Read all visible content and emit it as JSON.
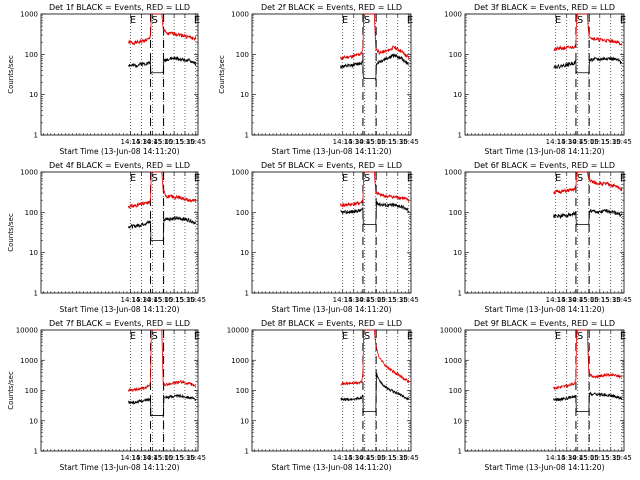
{
  "chart_data": [
    {
      "type": "line",
      "title": "Det 1f BLACK = Events, RED = LLD",
      "ylabel": "Counts/sec",
      "xlabel": "Start Time (13-Jun-08 14:11:20)",
      "yscale": "log",
      "ylim": [
        1,
        1000
      ],
      "y_ticks": [
        "1",
        "10",
        "100",
        "1000"
      ],
      "x_ticks": [
        "14:15",
        "14:30",
        "14:45",
        "15:00",
        "15:15",
        "15:30",
        "15:45"
      ],
      "markers": [
        "E",
        "S",
        "E"
      ],
      "series": [
        {
          "name": "LLD",
          "x": [
            "14:12",
            "14:20",
            "14:30",
            "14:38",
            "14:41",
            "14:42.5",
            "14:43.5",
            "14:44.5",
            "14:45",
            "14:55",
            "14:56",
            "14:58",
            "15:00",
            "15:05",
            "15:15",
            "15:25",
            "15:35",
            "15:45"
          ],
          "values": [
            200,
            190,
            210,
            230,
            240,
            290,
            1000,
            1000,
            1000,
            1000,
            1000,
            1000,
            420,
            320,
            330,
            300,
            270,
            240
          ]
        },
        {
          "name": "Events",
          "x": [
            "14:12",
            "14:20",
            "14:30",
            "14:38",
            "14:41",
            "14:42.5",
            "14:43",
            "14:44",
            "14:45",
            "15:00",
            "15:01",
            "15:05",
            "15:15",
            "15:25",
            "15:35",
            "15:45"
          ],
          "values": [
            55,
            52,
            58,
            60,
            62,
            65,
            35,
            35,
            35,
            35,
            70,
            75,
            80,
            75,
            70,
            60
          ]
        }
      ]
    },
    {
      "type": "line",
      "title": "Det 2f BLACK = Events, RED = LLD",
      "ylabel": "Counts/sec",
      "xlabel": "Start Time (13-Jun-08 14:11:20)",
      "yscale": "log",
      "ylim": [
        1,
        1000
      ],
      "y_ticks": [
        "1",
        "10",
        "100",
        "1000"
      ],
      "x_ticks": [
        "14:15",
        "14:30",
        "14:45",
        "15:00",
        "15:15",
        "15:30",
        "15:45"
      ],
      "markers": [
        "E",
        "S",
        "E"
      ],
      "series": [
        {
          "name": "LLD",
          "x": [
            "14:12",
            "14:20",
            "14:30",
            "14:38",
            "14:41",
            "14:42.5",
            "14:43.5",
            "14:44.5",
            "14:45",
            "14:55",
            "14:56",
            "14:58",
            "15:00",
            "15:05",
            "15:15",
            "15:25",
            "15:35",
            "15:45"
          ],
          "values": [
            80,
            85,
            90,
            100,
            110,
            130,
            1000,
            1000,
            1000,
            1000,
            1000,
            1000,
            140,
            110,
            120,
            150,
            120,
            80
          ]
        },
        {
          "name": "Events",
          "x": [
            "14:12",
            "14:20",
            "14:30",
            "14:38",
            "14:41",
            "14:42.5",
            "14:43",
            "14:44",
            "14:45",
            "15:00",
            "15:01",
            "15:05",
            "15:15",
            "15:25",
            "15:35",
            "15:45"
          ],
          "values": [
            50,
            50,
            55,
            60,
            62,
            65,
            25,
            25,
            25,
            25,
            60,
            65,
            80,
            95,
            80,
            55
          ]
        }
      ]
    },
    {
      "type": "line",
      "title": "Det 3f BLACK = Events, RED = LLD",
      "ylabel": "",
      "xlabel": "Start Time (13-Jun-08 14:11:20)",
      "yscale": "log",
      "ylim": [
        1,
        1000
      ],
      "y_ticks": [
        "1",
        "10",
        "100",
        "1000"
      ],
      "x_ticks": [
        "14:15",
        "14:30",
        "14:45",
        "15:00",
        "15:15",
        "15:30",
        "15:45"
      ],
      "markers": [
        "E",
        "S",
        "E"
      ],
      "series": [
        {
          "name": "LLD",
          "x": [
            "14:12",
            "14:20",
            "14:30",
            "14:38",
            "14:41",
            "14:42.5",
            "14:43.5",
            "14:44.5",
            "14:45",
            "14:55",
            "14:56",
            "14:58",
            "15:00",
            "15:05",
            "15:15",
            "15:25",
            "15:35",
            "15:45"
          ],
          "values": [
            130,
            140,
            145,
            150,
            160,
            180,
            1000,
            1000,
            1000,
            1000,
            1000,
            1000,
            300,
            250,
            230,
            220,
            210,
            180
          ]
        },
        {
          "name": "Events",
          "x": [
            "14:12",
            "14:20",
            "14:30",
            "14:38",
            "14:41",
            "14:42.5",
            "14:43",
            "14:44",
            "14:45",
            "15:00",
            "15:01",
            "15:05",
            "15:15",
            "15:25",
            "15:35",
            "15:45"
          ],
          "values": [
            50,
            50,
            55,
            60,
            62,
            65,
            35,
            35,
            35,
            35,
            70,
            75,
            75,
            80,
            75,
            65
          ]
        }
      ]
    },
    {
      "type": "line",
      "title": "Det 4f BLACK = Events, RED = LLD",
      "ylabel": "Counts/sec",
      "xlabel": "Start Time (13-Jun-08 14:11:20)",
      "yscale": "log",
      "ylim": [
        1,
        1000
      ],
      "y_ticks": [
        "1",
        "10",
        "100",
        "1000"
      ],
      "x_ticks": [
        "14:15",
        "14:30",
        "14:45",
        "15:00",
        "15:15",
        "15:30",
        "15:45"
      ],
      "markers": [
        "E",
        "S",
        "E"
      ],
      "series": [
        {
          "name": "LLD",
          "x": [
            "14:12",
            "14:20",
            "14:30",
            "14:38",
            "14:41",
            "14:42.5",
            "14:43.5",
            "14:44.5",
            "14:45",
            "14:55",
            "14:56",
            "14:58",
            "15:00",
            "15:05",
            "15:15",
            "15:25",
            "15:35",
            "15:45"
          ],
          "values": [
            140,
            145,
            160,
            170,
            180,
            200,
            1000,
            1000,
            1000,
            1000,
            1000,
            1000,
            350,
            250,
            240,
            230,
            200,
            190
          ]
        },
        {
          "name": "Events",
          "x": [
            "14:12",
            "14:20",
            "14:30",
            "14:38",
            "14:41",
            "14:42.5",
            "14:43",
            "14:44",
            "14:45",
            "15:00",
            "15:01",
            "15:05",
            "15:15",
            "15:25",
            "15:35",
            "15:45"
          ],
          "values": [
            45,
            45,
            50,
            55,
            57,
            60,
            20,
            20,
            20,
            20,
            65,
            70,
            70,
            70,
            65,
            55
          ]
        }
      ]
    },
    {
      "type": "line",
      "title": "Det 5f BLACK = Events, RED = LLD",
      "ylabel": "",
      "xlabel": "Start Time (13-Jun-08 14:11:20)",
      "yscale": "log",
      "ylim": [
        1,
        1000
      ],
      "y_ticks": [
        "1",
        "10",
        "100",
        "1000"
      ],
      "x_ticks": [
        "14:15",
        "14:30",
        "14:45",
        "15:00",
        "15:15",
        "15:30",
        "15:45"
      ],
      "markers": [
        "E",
        "S",
        "E"
      ],
      "series": [
        {
          "name": "LLD",
          "x": [
            "14:12",
            "14:20",
            "14:30",
            "14:38",
            "14:41",
            "14:42.5",
            "14:43.5",
            "14:44.5",
            "14:45",
            "14:55",
            "14:56",
            "14:58",
            "15:00",
            "15:05",
            "15:15",
            "15:25",
            "15:35",
            "15:45"
          ],
          "values": [
            150,
            155,
            160,
            170,
            180,
            200,
            1000,
            1000,
            1000,
            1000,
            1000,
            1000,
            320,
            270,
            250,
            240,
            230,
            200
          ]
        },
        {
          "name": "Events",
          "x": [
            "14:12",
            "14:20",
            "14:30",
            "14:38",
            "14:41",
            "14:42.5",
            "14:43",
            "14:44",
            "14:45",
            "15:00",
            "15:01",
            "15:05",
            "15:15",
            "15:25",
            "15:35",
            "15:45"
          ],
          "values": [
            100,
            100,
            105,
            110,
            115,
            120,
            50,
            50,
            50,
            50,
            180,
            160,
            150,
            150,
            140,
            110
          ]
        }
      ]
    },
    {
      "type": "line",
      "title": "Det 6f BLACK = Events, RED = LLD",
      "ylabel": "",
      "xlabel": "Start Time (13-Jun-08 14:11:20)",
      "yscale": "log",
      "ylim": [
        1,
        1000
      ],
      "y_ticks": [
        "1",
        "10",
        "100",
        "1000"
      ],
      "x_ticks": [
        "14:15",
        "14:30",
        "14:45",
        "15:00",
        "15:15",
        "15:30",
        "15:45"
      ],
      "markers": [
        "E",
        "S",
        "E"
      ],
      "series": [
        {
          "name": "LLD",
          "x": [
            "14:12",
            "14:20",
            "14:30",
            "14:38",
            "14:41",
            "14:42.5",
            "14:43.5",
            "14:44.5",
            "14:45",
            "14:55",
            "14:56",
            "14:58",
            "15:00",
            "15:05",
            "15:15",
            "15:25",
            "15:35",
            "15:45"
          ],
          "values": [
            320,
            325,
            340,
            360,
            380,
            420,
            1000,
            1000,
            1000,
            1000,
            1000,
            1000,
            650,
            560,
            520,
            500,
            450,
            380
          ]
        },
        {
          "name": "Events",
          "x": [
            "14:12",
            "14:20",
            "14:30",
            "14:38",
            "14:41",
            "14:42.5",
            "14:43",
            "14:44",
            "14:45",
            "15:00",
            "15:01",
            "15:05",
            "15:15",
            "15:25",
            "15:35",
            "15:45"
          ],
          "values": [
            80,
            80,
            85,
            90,
            92,
            95,
            50,
            50,
            50,
            50,
            110,
            105,
            100,
            110,
            100,
            85
          ]
        }
      ]
    },
    {
      "type": "line",
      "title": "Det 7f BLACK = Events, RED = LLD",
      "ylabel": "Counts/sec",
      "xlabel": "Start Time (13-Jun-08 14:11:20)",
      "yscale": "log",
      "ylim": [
        1,
        10000
      ],
      "y_ticks": [
        "1",
        "10",
        "100",
        "1000",
        "10000"
      ],
      "x_ticks": [
        "14:15",
        "14:30",
        "14:45",
        "15:00",
        "15:15",
        "15:30",
        "15:45"
      ],
      "markers": [
        "E",
        "S",
        "E"
      ],
      "series": [
        {
          "name": "LLD",
          "x": [
            "14:12",
            "14:20",
            "14:30",
            "14:38",
            "14:41",
            "14:42.5",
            "14:43.5",
            "14:44.5",
            "14:45",
            "14:55",
            "14:56",
            "14:58",
            "15:00",
            "15:05",
            "15:15",
            "15:25",
            "15:35",
            "15:45"
          ],
          "values": [
            100,
            105,
            115,
            130,
            140,
            200,
            10000,
            10000,
            10000,
            10000,
            10000,
            10000,
            150,
            160,
            180,
            190,
            170,
            140
          ]
        },
        {
          "name": "Events",
          "x": [
            "14:12",
            "14:20",
            "14:30",
            "14:38",
            "14:41",
            "14:42.5",
            "14:43",
            "14:44",
            "14:45",
            "15:00",
            "15:01",
            "15:05",
            "15:15",
            "15:25",
            "15:35",
            "15:45"
          ],
          "values": [
            40,
            40,
            45,
            48,
            50,
            55,
            15,
            15,
            15,
            15,
            60,
            60,
            65,
            65,
            60,
            50
          ]
        }
      ]
    },
    {
      "type": "line",
      "title": "Det 8f BLACK = Events, RED = LLD",
      "ylabel": "",
      "xlabel": "Start Time (13-Jun-08 14:11:20)",
      "yscale": "log",
      "ylim": [
        1,
        10000
      ],
      "y_ticks": [
        "1",
        "10",
        "100",
        "1000",
        "10000"
      ],
      "x_ticks": [
        "14:15",
        "14:30",
        "14:45",
        "15:00",
        "15:15",
        "15:30",
        "15:45"
      ],
      "markers": [
        "E",
        "S",
        "E"
      ],
      "series": [
        {
          "name": "LLD",
          "x": [
            "14:12",
            "14:20",
            "14:30",
            "14:38",
            "14:41",
            "14:42.5",
            "14:43.5",
            "14:44.5",
            "14:45",
            "14:55",
            "14:56",
            "14:58",
            "15:00",
            "15:05",
            "15:15",
            "15:25",
            "15:35",
            "15:45"
          ],
          "values": [
            170,
            170,
            175,
            180,
            200,
            400,
            10000,
            10000,
            10000,
            10000,
            10000,
            10000,
            3000,
            1200,
            600,
            400,
            280,
            200
          ]
        },
        {
          "name": "Events",
          "x": [
            "14:12",
            "14:20",
            "14:30",
            "14:38",
            "14:41",
            "14:42.5",
            "14:43",
            "14:44",
            "14:45",
            "15:00",
            "15:01",
            "15:05",
            "15:15",
            "15:25",
            "15:35",
            "15:45"
          ],
          "values": [
            50,
            50,
            52,
            55,
            60,
            70,
            20,
            20,
            20,
            20,
            350,
            200,
            120,
            90,
            70,
            50
          ]
        }
      ]
    },
    {
      "type": "line",
      "title": "Det 9f BLACK = Events, RED = LLD",
      "ylabel": "",
      "xlabel": "Start Time (13-Jun-08 14:11:20)",
      "yscale": "log",
      "ylim": [
        1,
        10000
      ],
      "y_ticks": [
        "1",
        "10",
        "100",
        "1000",
        "10000"
      ],
      "x_ticks": [
        "14:15",
        "14:30",
        "14:45",
        "15:00",
        "15:15",
        "15:30",
        "15:45"
      ],
      "markers": [
        "E",
        "S",
        "E"
      ],
      "series": [
        {
          "name": "LLD",
          "x": [
            "14:12",
            "14:20",
            "14:30",
            "14:38",
            "14:41",
            "14:42.5",
            "14:43.5",
            "14:44.5",
            "14:45",
            "14:55",
            "14:56",
            "14:58",
            "15:00",
            "15:05",
            "15:15",
            "15:25",
            "15:35",
            "15:45"
          ],
          "values": [
            120,
            130,
            140,
            160,
            180,
            250,
            10000,
            10000,
            10000,
            10000,
            10000,
            10000,
            400,
            280,
            300,
            330,
            320,
            280
          ]
        },
        {
          "name": "Events",
          "x": [
            "14:12",
            "14:20",
            "14:30",
            "14:38",
            "14:41",
            "14:42.5",
            "14:43",
            "14:44",
            "14:45",
            "15:00",
            "15:01",
            "15:05",
            "15:15",
            "15:25",
            "15:35",
            "15:45"
          ],
          "values": [
            50,
            50,
            55,
            60,
            62,
            65,
            20,
            20,
            20,
            20,
            80,
            75,
            75,
            70,
            65,
            55
          ]
        }
      ]
    }
  ]
}
